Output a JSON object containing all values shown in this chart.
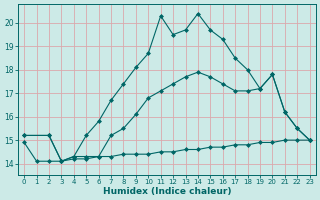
{
  "xlabel": "Humidex (Indice chaleur)",
  "ylabel": "",
  "bg_color": "#cceae7",
  "grid_color": "#dba8ac",
  "line_color": "#006666",
  "xlim": [
    -0.5,
    23.5
  ],
  "ylim": [
    13.5,
    20.8
  ],
  "xticks": [
    0,
    1,
    2,
    3,
    4,
    5,
    6,
    7,
    8,
    9,
    10,
    11,
    12,
    13,
    14,
    15,
    16,
    17,
    18,
    19,
    20,
    21,
    22,
    23
  ],
  "yticks": [
    14,
    15,
    16,
    17,
    18,
    19,
    20
  ],
  "line1_x": [
    0,
    1,
    2,
    3,
    4,
    5,
    6,
    7,
    8,
    9,
    10,
    11,
    12,
    13,
    14,
    15,
    16,
    17,
    18,
    19,
    20,
    21,
    22,
    23
  ],
  "line1_y": [
    14.9,
    14.1,
    14.1,
    14.1,
    14.2,
    14.2,
    14.3,
    14.3,
    14.4,
    14.4,
    14.4,
    14.5,
    14.5,
    14.6,
    14.6,
    14.7,
    14.7,
    14.8,
    14.8,
    14.9,
    14.9,
    15.0,
    15.0,
    15.0
  ],
  "line2_x": [
    0,
    2,
    3,
    4,
    5,
    6,
    7,
    8,
    9,
    10,
    11,
    12,
    13,
    14,
    15,
    16,
    17,
    18,
    19,
    20,
    21,
    22,
    23
  ],
  "line2_y": [
    15.2,
    15.2,
    14.1,
    14.3,
    14.3,
    14.3,
    15.2,
    15.5,
    16.1,
    16.8,
    17.1,
    17.4,
    17.7,
    17.9,
    17.7,
    17.4,
    17.1,
    17.1,
    17.2,
    17.8,
    16.2,
    15.5,
    15.0
  ],
  "line3_x": [
    0,
    2,
    3,
    4,
    5,
    6,
    7,
    8,
    9,
    10,
    11,
    12,
    13,
    14,
    15,
    16,
    17,
    18,
    19,
    20,
    21,
    22,
    23
  ],
  "line3_y": [
    15.2,
    15.2,
    14.1,
    14.3,
    15.2,
    15.8,
    16.7,
    17.4,
    18.1,
    18.7,
    20.3,
    19.5,
    19.7,
    20.4,
    19.7,
    19.3,
    18.5,
    18.0,
    17.2,
    17.8,
    16.2,
    15.5,
    15.0
  ]
}
